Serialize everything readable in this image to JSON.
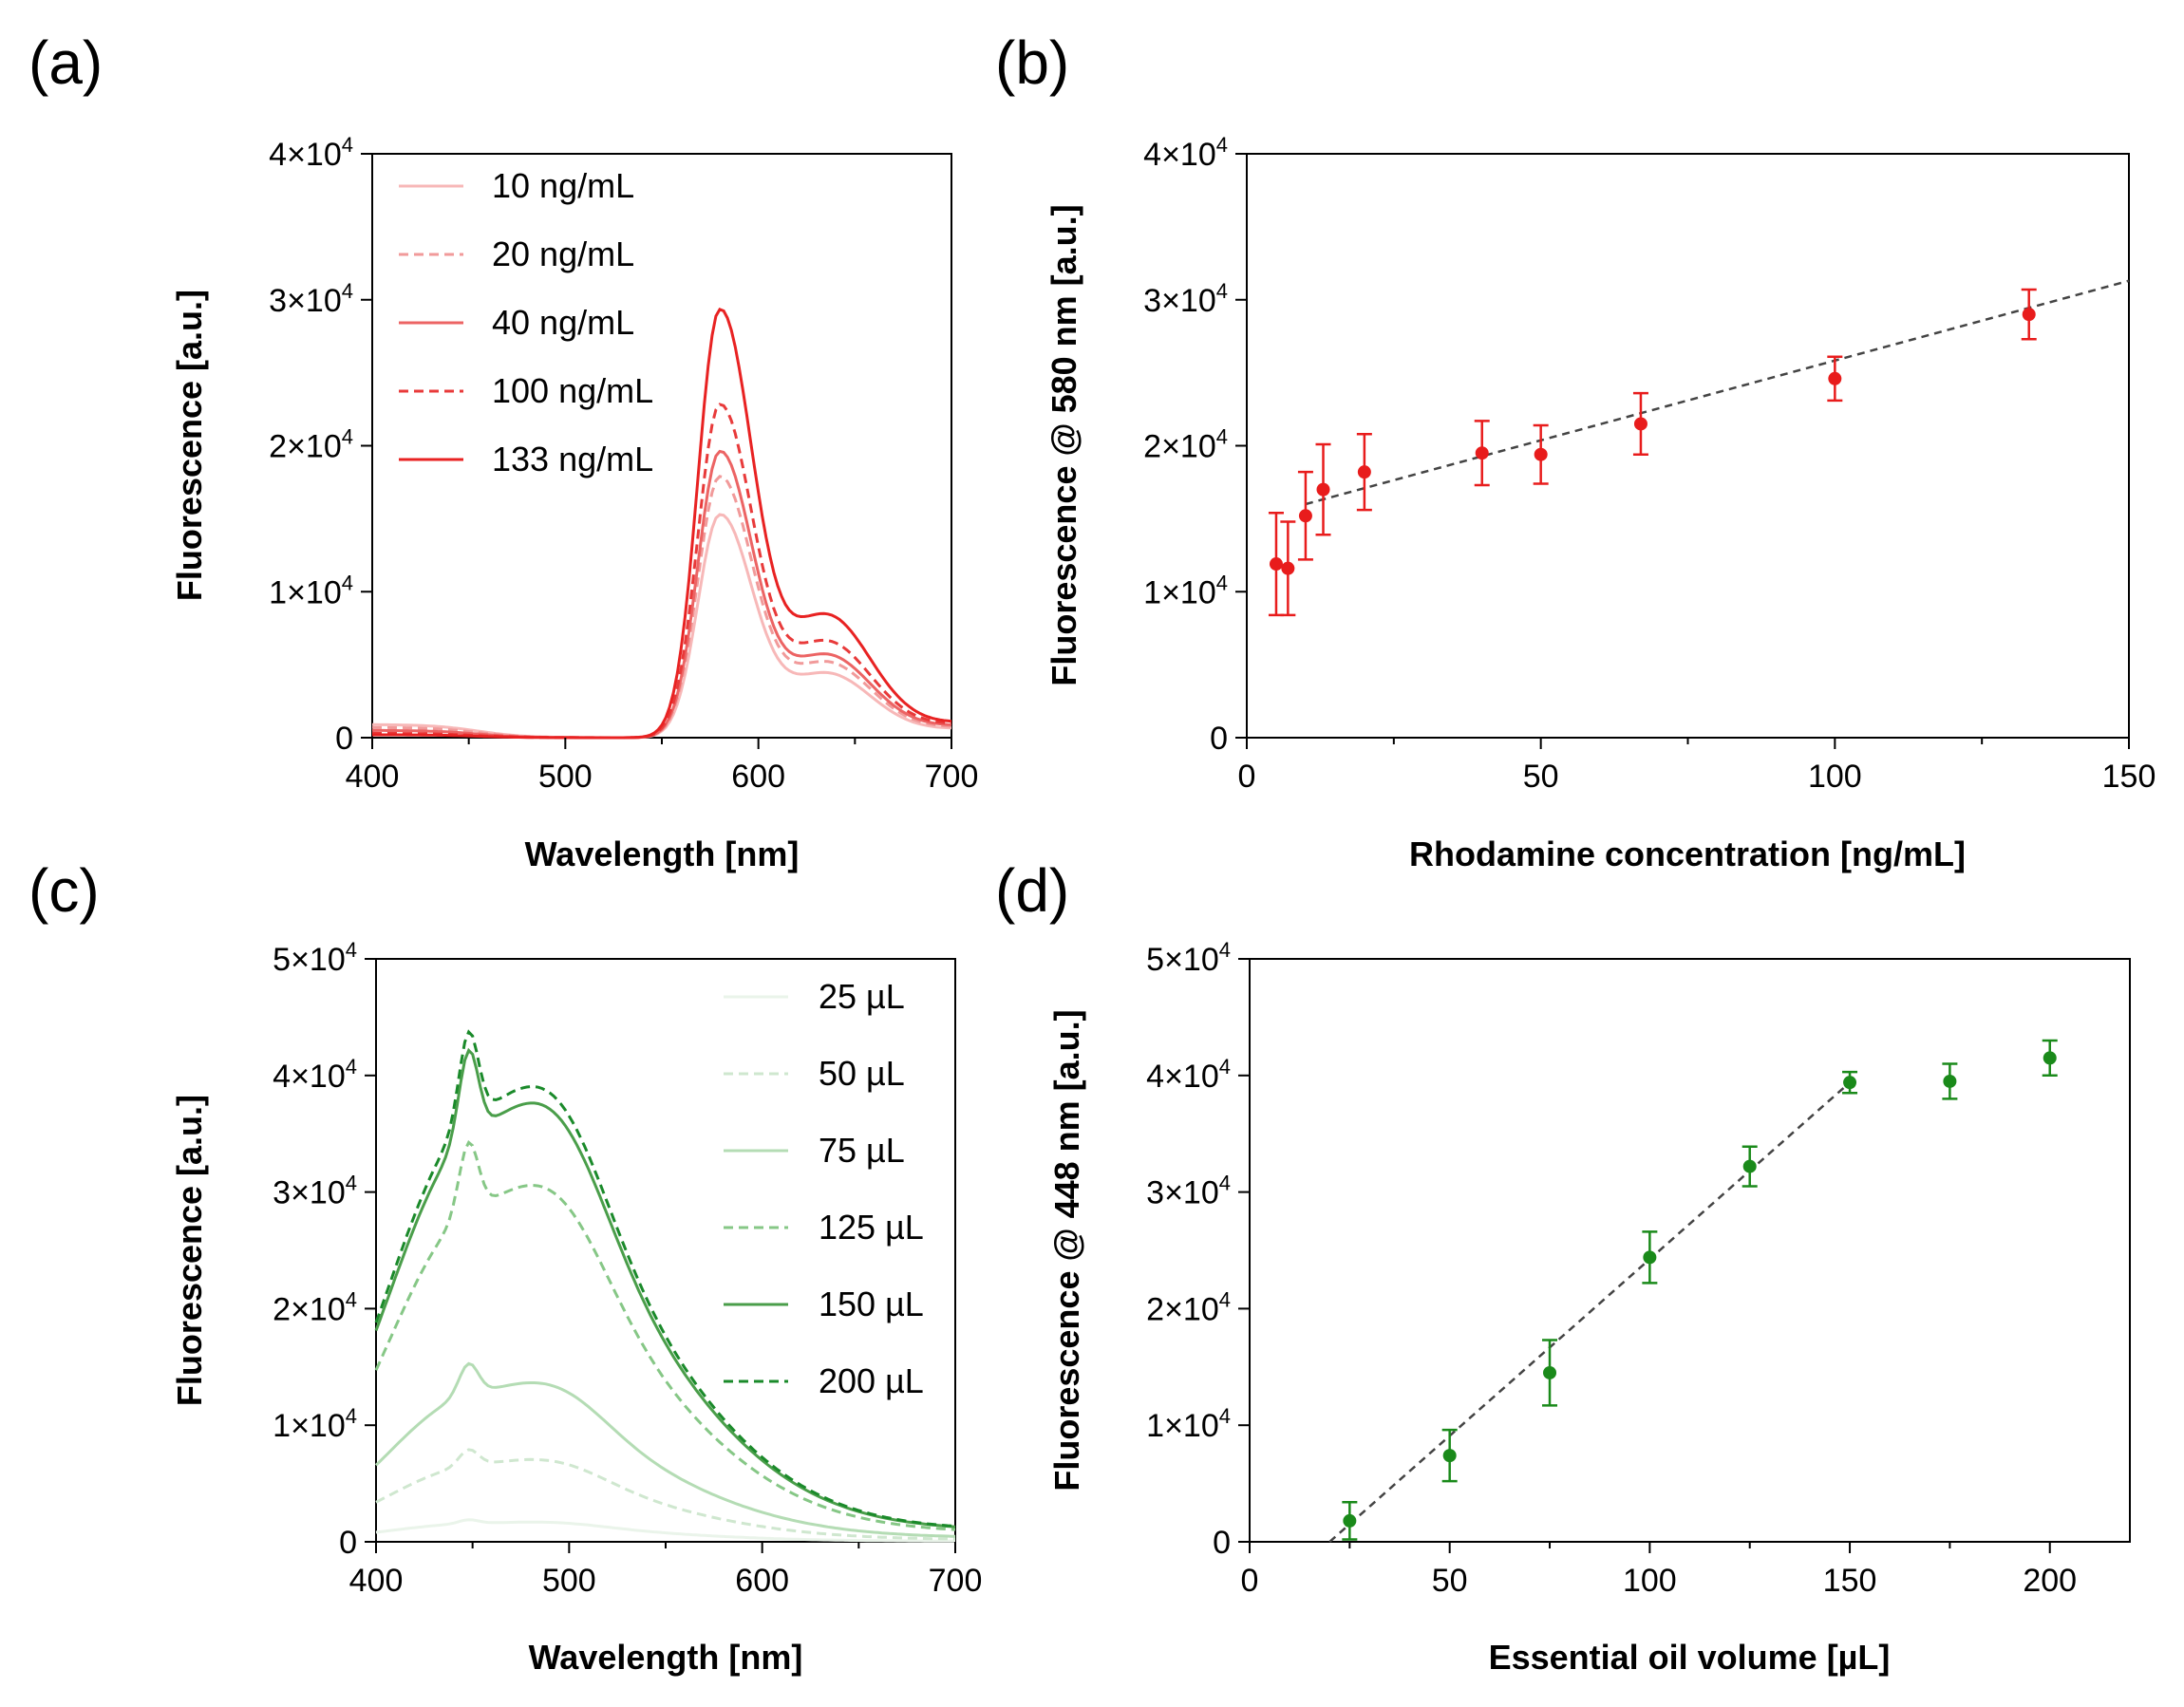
{
  "chart_data": [
    {
      "panel": "(a)",
      "type": "line",
      "xlabel": "Wavelength [nm]",
      "ylabel": "Fluorescence [a.u.]",
      "xlim": [
        400,
        700
      ],
      "ylim": [
        0,
        40000
      ],
      "xticks": [
        400,
        500,
        600,
        700
      ],
      "yticks": [
        0,
        10000,
        20000,
        30000,
        40000
      ],
      "ytick_labels": [
        {
          "main": "0",
          "sup": ""
        },
        {
          "main": "1×10",
          "sup": "4"
        },
        {
          "main": "2×10",
          "sup": "4"
        },
        {
          "main": "3×10",
          "sup": "4"
        },
        {
          "main": "4×10",
          "sup": "4"
        }
      ],
      "legend_position": "top-left",
      "series": [
        {
          "name": "10 ng/mL",
          "color": "#f7b8b8",
          "style": "solid",
          "peak": 15200,
          "base": 900,
          "tail": 600
        },
        {
          "name": "20 ng/mL",
          "color": "#f19a9a",
          "style": "dashed",
          "peak": 17800,
          "base": 700,
          "tail": 700
        },
        {
          "name": "40 ng/mL",
          "color": "#ec6464",
          "style": "solid",
          "peak": 19500,
          "base": 500,
          "tail": 800
        },
        {
          "name": "100 ng/mL",
          "color": "#e83a3a",
          "style": "dashed",
          "peak": 22700,
          "base": 300,
          "tail": 900
        },
        {
          "name": "133 ng/mL",
          "color": "#e82222",
          "style": "solid",
          "peak": 29200,
          "base": 200,
          "tail": 1000
        }
      ]
    },
    {
      "panel": "(b)",
      "type": "scatter",
      "xlabel": "Rhodamine concentration [ng/mL]",
      "ylabel": "Fluorescence @ 580 nm [a.u.]",
      "xlim": [
        0,
        150
      ],
      "ylim": [
        0,
        40000
      ],
      "xticks": [
        0,
        50,
        100,
        150
      ],
      "yticks": [
        0,
        10000,
        20000,
        30000,
        40000
      ],
      "ytick_labels": [
        {
          "main": "0",
          "sup": ""
        },
        {
          "main": "1×10",
          "sup": "4"
        },
        {
          "main": "2×10",
          "sup": "4"
        },
        {
          "main": "3×10",
          "sup": "4"
        },
        {
          "main": "4×10",
          "sup": "4"
        }
      ],
      "color": "#e81c1c",
      "points": [
        {
          "x": 5,
          "y": 11900,
          "err": 3500
        },
        {
          "x": 7,
          "y": 11600,
          "err": 3200
        },
        {
          "x": 10,
          "y": 15200,
          "err": 3000
        },
        {
          "x": 13,
          "y": 17000,
          "err": 3100
        },
        {
          "x": 20,
          "y": 18200,
          "err": 2600
        },
        {
          "x": 40,
          "y": 19500,
          "err": 2200
        },
        {
          "x": 50,
          "y": 19400,
          "err": 2000
        },
        {
          "x": 67,
          "y": 21500,
          "err": 2100
        },
        {
          "x": 100,
          "y": 24600,
          "err": 1500
        },
        {
          "x": 133,
          "y": 29000,
          "err": 1700
        }
      ],
      "fit": {
        "x": [
          10,
          150
        ],
        "y": [
          16000,
          31300
        ],
        "style": "dashed"
      }
    },
    {
      "panel": "(c)",
      "type": "line",
      "xlabel": "Wavelength [nm]",
      "ylabel": "Fluorescence [a.u.]",
      "xlim": [
        400,
        700
      ],
      "ylim": [
        0,
        50000
      ],
      "xticks": [
        400,
        500,
        600,
        700
      ],
      "yticks": [
        0,
        10000,
        20000,
        30000,
        40000,
        50000
      ],
      "ytick_labels": [
        {
          "main": "0",
          "sup": ""
        },
        {
          "main": "1×10",
          "sup": "4"
        },
        {
          "main": "2×10",
          "sup": "4"
        },
        {
          "main": "3×10",
          "sup": "4"
        },
        {
          "main": "4×10",
          "sup": "4"
        },
        {
          "main": "5×10",
          "sup": "4"
        }
      ],
      "legend_position": "top-right",
      "series": [
        {
          "name": "25 µL",
          "color": "#eaf4ea",
          "style": "solid",
          "peak": 1800
        },
        {
          "name": "50 µL",
          "color": "#cfe7cf",
          "style": "dashed",
          "peak": 7500
        },
        {
          "name": "75 µL",
          "color": "#b4dcb4",
          "style": "solid",
          "peak": 14500
        },
        {
          "name": "125 µL",
          "color": "#86c786",
          "style": "dashed",
          "peak": 32500
        },
        {
          "name": "150 µL",
          "color": "#4a9e4a",
          "style": "solid",
          "peak": 40000
        },
        {
          "name": "200 µL",
          "color": "#1a8a2a",
          "style": "dashed",
          "peak": 41500
        }
      ]
    },
    {
      "panel": "(d)",
      "type": "scatter",
      "xlabel": "Essential oil volume [µL]",
      "ylabel": "Fluorescence @ 448 nm [a.u.]",
      "xlim": [
        0,
        220
      ],
      "ylim": [
        0,
        50000
      ],
      "xticks": [
        0,
        50,
        100,
        150,
        200
      ],
      "yticks": [
        0,
        10000,
        20000,
        30000,
        40000,
        50000
      ],
      "ytick_labels": [
        {
          "main": "0",
          "sup": ""
        },
        {
          "main": "1×10",
          "sup": "4"
        },
        {
          "main": "2×10",
          "sup": "4"
        },
        {
          "main": "3×10",
          "sup": "4"
        },
        {
          "main": "4×10",
          "sup": "4"
        },
        {
          "main": "5×10",
          "sup": "4"
        }
      ],
      "color": "#1a8a1a",
      "points": [
        {
          "x": 25,
          "y": 1800,
          "err": 1600
        },
        {
          "x": 50,
          "y": 7400,
          "err": 2200
        },
        {
          "x": 75,
          "y": 14500,
          "err": 2800
        },
        {
          "x": 100,
          "y": 24400,
          "err": 2200
        },
        {
          "x": 125,
          "y": 32200,
          "err": 1700
        },
        {
          "x": 150,
          "y": 39400,
          "err": 900
        },
        {
          "x": 175,
          "y": 39500,
          "err": 1500
        },
        {
          "x": 200,
          "y": 41500,
          "err": 1500
        }
      ],
      "fit": {
        "x": [
          20,
          150
        ],
        "y": [
          0,
          39400
        ],
        "style": "dashed"
      }
    }
  ]
}
